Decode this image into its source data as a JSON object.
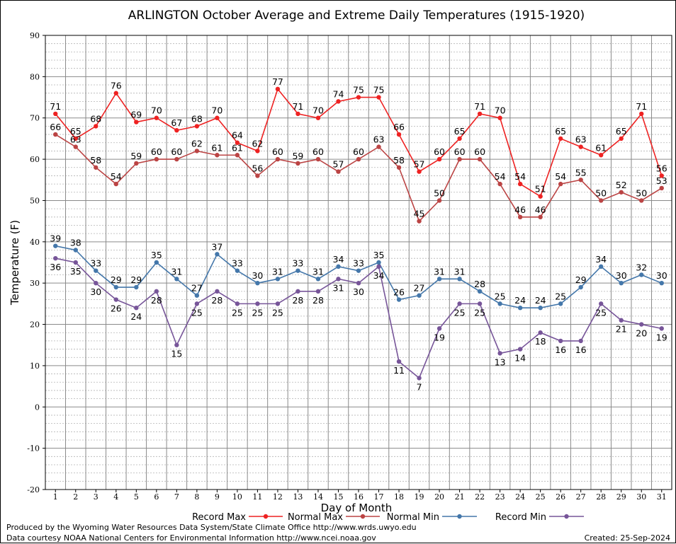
{
  "chart_data": {
    "type": "line",
    "title": "ARLINGTON October Average and Extreme Daily Temperatures (1915-1920)",
    "xlabel": "Day of Month",
    "ylabel": "Temperature (F)",
    "ylim": [
      -20,
      90
    ],
    "yticks": [
      -20,
      -10,
      0,
      10,
      20,
      30,
      40,
      50,
      60,
      70,
      80,
      90
    ],
    "x": [
      1,
      2,
      3,
      4,
      5,
      6,
      7,
      8,
      9,
      10,
      11,
      12,
      13,
      14,
      15,
      16,
      17,
      18,
      19,
      20,
      21,
      22,
      23,
      24,
      25,
      26,
      27,
      28,
      29,
      30,
      31
    ],
    "grid": true,
    "legend_position": "bottom",
    "series": [
      {
        "name": "Record Max",
        "color": "#ee2222",
        "labels": "above",
        "values": [
          71,
          65,
          68,
          76,
          69,
          70,
          67,
          68,
          70,
          64,
          62,
          77,
          71,
          70,
          74,
          75,
          75,
          66,
          57,
          60,
          65,
          71,
          70,
          54,
          51,
          65,
          63,
          61,
          65,
          71,
          56
        ]
      },
      {
        "name": "Normal Max",
        "color": "#bb4444",
        "labels": "above",
        "values": [
          66,
          63,
          58,
          54,
          59,
          60,
          60,
          62,
          61,
          61,
          56,
          60,
          59,
          60,
          57,
          60,
          63,
          58,
          45,
          50,
          60,
          60,
          54,
          46,
          46,
          54,
          55,
          50,
          52,
          50,
          53
        ]
      },
      {
        "name": "Normal Min",
        "color": "#4477aa",
        "labels": "above",
        "values": [
          39,
          38,
          33,
          29,
          29,
          35,
          31,
          27,
          37,
          33,
          30,
          31,
          33,
          31,
          34,
          33,
          35,
          26,
          27,
          31,
          31,
          28,
          25,
          24,
          24,
          25,
          29,
          34,
          30,
          32,
          30
        ]
      },
      {
        "name": "Record Min",
        "color": "#775599",
        "labels": "below",
        "values": [
          36,
          35,
          30,
          26,
          24,
          28,
          15,
          25,
          28,
          25,
          25,
          25,
          28,
          28,
          31,
          30,
          34,
          11,
          7,
          19,
          25,
          25,
          13,
          14,
          18,
          16,
          16,
          25,
          21,
          20,
          19
        ]
      }
    ]
  },
  "footer": {
    "line1": "Produced by the Wyoming Water Resources Data System/State Climate Office http://www.wrds.uwyo.edu",
    "line2": "Data courtesy NOAA National Centers for Environmental Information http://www.ncei.noaa.gov",
    "created": "Created:  25-Sep-2024"
  }
}
